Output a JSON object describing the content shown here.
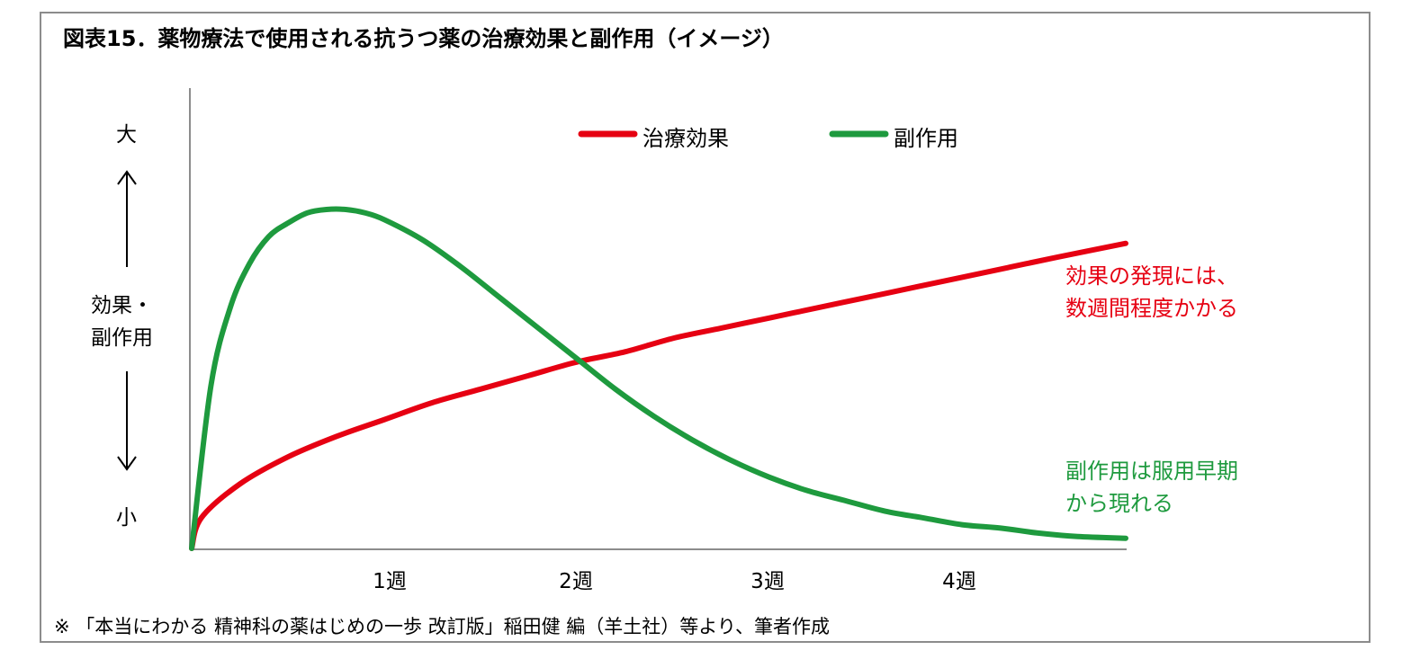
{
  "title": "図表15．薬物療法で使用される抗うつ薬の治療効果と副作用（イメージ）",
  "source_note": "※ 「本当にわかる 精神科の薬はじめの一歩 改訂版」稲田健 編（羊土社）等より、筆者作成",
  "chart_data": {
    "type": "line",
    "title": "図表15．薬物療法で使用される抗うつ薬の治療効果と副作用（イメージ）",
    "ylabel_top": "大",
    "ylabel_bottom": "小",
    "ylabel_main_line1": "効果・",
    "ylabel_main_line2": "副作用",
    "x_tick_labels": [
      "1週",
      "2週",
      "3週",
      "4週"
    ],
    "x_ticks": [
      1,
      2,
      3,
      4
    ],
    "xlim": [
      0,
      4.85
    ],
    "ylim": [
      0,
      1
    ],
    "grid": false,
    "legend_placement": "top-center",
    "series": [
      {
        "name": "治療効果",
        "color": "#e60012",
        "x": [
          0,
          0.05,
          0.25,
          0.5,
          0.75,
          1.0,
          1.25,
          1.5,
          1.75,
          2.0,
          2.25,
          2.5,
          2.75,
          3.0,
          3.25,
          3.5,
          3.75,
          4.0,
          4.25,
          4.5,
          4.85
        ],
        "y": [
          0,
          0.09,
          0.19,
          0.27,
          0.33,
          0.38,
          0.43,
          0.47,
          0.51,
          0.55,
          0.58,
          0.62,
          0.65,
          0.68,
          0.71,
          0.74,
          0.77,
          0.8,
          0.83,
          0.86,
          0.9
        ]
      },
      {
        "name": "副作用",
        "color": "#1e9a3e",
        "x": [
          0,
          0.1,
          0.2,
          0.3,
          0.4,
          0.5,
          0.6,
          0.7,
          0.8,
          0.9,
          1.0,
          1.2,
          1.4,
          1.6,
          1.8,
          2.0,
          2.2,
          2.4,
          2.6,
          2.8,
          3.0,
          3.2,
          3.4,
          3.6,
          3.8,
          4.0,
          4.2,
          4.4,
          4.6,
          4.85
        ],
        "y": [
          0,
          0.48,
          0.71,
          0.84,
          0.92,
          0.96,
          0.99,
          1.0,
          1.0,
          0.99,
          0.97,
          0.91,
          0.83,
          0.74,
          0.65,
          0.56,
          0.47,
          0.39,
          0.32,
          0.26,
          0.21,
          0.17,
          0.14,
          0.11,
          0.09,
          0.07,
          0.06,
          0.045,
          0.035,
          0.03
        ]
      }
    ],
    "annotations": [
      {
        "series": "治療効果",
        "line1": "効果の発現には、",
        "line2": "数週間程度かかる"
      },
      {
        "series": "副作用",
        "line1": "副作用は服用早期",
        "line2": "から現れる"
      }
    ]
  }
}
